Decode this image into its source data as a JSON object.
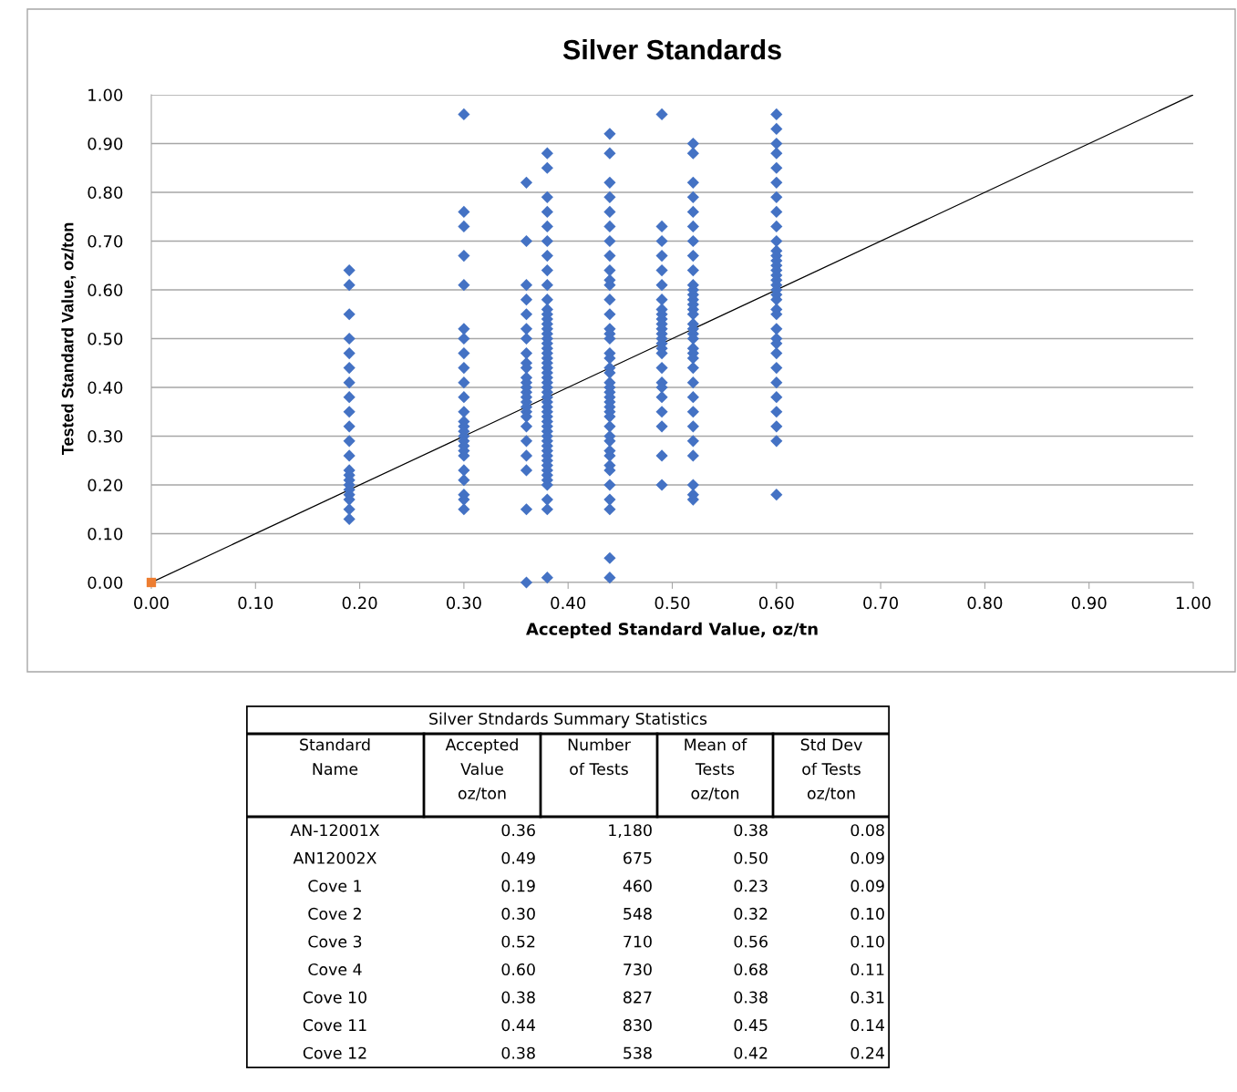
{
  "chart_data": [
    {
      "type": "scatter",
      "title": "Silver Standards",
      "xlabel": "Accepted Standard Value, oz/tn",
      "ylabel": "Tested Standard Value, oz/ton",
      "xlim": [
        0,
        1
      ],
      "ylim": [
        0,
        1
      ],
      "xticks": [
        {
          "value": 0,
          "label": "0.00"
        },
        {
          "value": 0.1,
          "label": "0.10"
        },
        {
          "value": 0.2,
          "label": "0.20"
        },
        {
          "value": 0.3,
          "label": "0.30"
        },
        {
          "value": 0.4,
          "label": "0.40"
        },
        {
          "value": 0.5,
          "label": "0.50"
        },
        {
          "value": 0.6,
          "label": "0.60"
        },
        {
          "value": 0.7,
          "label": "0.70"
        },
        {
          "value": 0.8,
          "label": "0.80"
        },
        {
          "value": 0.9,
          "label": "0.90"
        },
        {
          "value": 1,
          "label": "1.00"
        }
      ],
      "yticks": [
        {
          "value": 0,
          "label": "0.00"
        },
        {
          "value": 0.1,
          "label": "0.10"
        },
        {
          "value": 0.2,
          "label": "0.20"
        },
        {
          "value": 0.3,
          "label": "0.30"
        },
        {
          "value": 0.4,
          "label": "0.40"
        },
        {
          "value": 0.5,
          "label": "0.50"
        },
        {
          "value": 0.6,
          "label": "0.60"
        },
        {
          "value": 0.7,
          "label": "0.70"
        },
        {
          "value": 0.8,
          "label": "0.80"
        },
        {
          "value": 0.9,
          "label": "0.90"
        },
        {
          "value": 1,
          "label": "1.00"
        }
      ],
      "grid": "y",
      "legend": false,
      "series": [
        {
          "type": "line",
          "color": "#000000",
          "marker": "none",
          "line_style": "solid",
          "x": [
            0,
            1
          ],
          "values": [
            0,
            1
          ]
        },
        {
          "type": "scatter",
          "color": "#4472c4",
          "marker": "diamond",
          "x": [
            0.19,
            0.19,
            0.19,
            0.19,
            0.19,
            0.19,
            0.19,
            0.19,
            0.19,
            0.19,
            0.19,
            0.19,
            0.19,
            0.19,
            0.19,
            0.19,
            0.19,
            0.19,
            0.19,
            0.19,
            0.19
          ],
          "values": [
            0.64,
            0.61,
            0.55,
            0.5,
            0.47,
            0.44,
            0.41,
            0.38,
            0.35,
            0.32,
            0.29,
            0.26,
            0.23,
            0.22,
            0.21,
            0.2,
            0.19,
            0.18,
            0.17,
            0.15,
            0.13
          ]
        },
        {
          "type": "scatter",
          "color": "#4472c4",
          "marker": "diamond",
          "x": [
            0.3,
            0.3,
            0.3,
            0.3,
            0.3,
            0.3,
            0.3,
            0.3,
            0.3,
            0.3,
            0.3,
            0.3,
            0.3,
            0.3,
            0.3,
            0.3,
            0.3,
            0.3,
            0.3,
            0.3,
            0.3,
            0.3,
            0.3,
            0.3,
            0.3
          ],
          "values": [
            0.96,
            0.76,
            0.73,
            0.67,
            0.61,
            0.52,
            0.5,
            0.47,
            0.44,
            0.41,
            0.38,
            0.35,
            0.33,
            0.32,
            0.31,
            0.3,
            0.29,
            0.28,
            0.27,
            0.26,
            0.23,
            0.21,
            0.18,
            0.17,
            0.15
          ]
        },
        {
          "type": "scatter",
          "color": "#4472c4",
          "marker": "diamond",
          "x": [
            0.36,
            0.36,
            0.36,
            0.36,
            0.36,
            0.36,
            0.36,
            0.36,
            0.36,
            0.36,
            0.36,
            0.36,
            0.36,
            0.36,
            0.36,
            0.36,
            0.36,
            0.36,
            0.36,
            0.36,
            0.36,
            0.36,
            0.36,
            0.36,
            0.36
          ],
          "values": [
            0.82,
            0.7,
            0.61,
            0.58,
            0.55,
            0.52,
            0.5,
            0.47,
            0.45,
            0.44,
            0.42,
            0.41,
            0.4,
            0.39,
            0.38,
            0.37,
            0.36,
            0.35,
            0.34,
            0.32,
            0.29,
            0.26,
            0.23,
            0.15,
            0.0
          ]
        },
        {
          "type": "scatter",
          "color": "#4472c4",
          "marker": "diamond",
          "x": [
            0.38,
            0.38,
            0.38,
            0.38,
            0.38,
            0.38,
            0.38,
            0.38,
            0.38,
            0.38,
            0.38,
            0.38,
            0.38,
            0.38,
            0.38,
            0.38,
            0.38,
            0.38,
            0.38,
            0.38,
            0.38,
            0.38,
            0.38,
            0.38,
            0.38,
            0.38,
            0.38,
            0.38,
            0.38,
            0.38,
            0.38,
            0.38,
            0.38,
            0.38,
            0.38,
            0.38,
            0.38,
            0.38,
            0.38,
            0.38,
            0.38,
            0.38,
            0.38,
            0.38,
            0.38,
            0.38,
            0.38,
            0.38,
            0.38,
            0.38
          ],
          "values": [
            0.88,
            0.85,
            0.79,
            0.76,
            0.73,
            0.7,
            0.67,
            0.64,
            0.61,
            0.58,
            0.56,
            0.55,
            0.54,
            0.53,
            0.52,
            0.51,
            0.5,
            0.49,
            0.48,
            0.47,
            0.46,
            0.45,
            0.44,
            0.43,
            0.42,
            0.41,
            0.4,
            0.39,
            0.38,
            0.37,
            0.36,
            0.35,
            0.34,
            0.33,
            0.32,
            0.31,
            0.3,
            0.29,
            0.28,
            0.27,
            0.26,
            0.25,
            0.24,
            0.23,
            0.22,
            0.21,
            0.2,
            0.17,
            0.15,
            0.01
          ]
        },
        {
          "type": "scatter",
          "color": "#4472c4",
          "marker": "diamond",
          "x": [
            0.44,
            0.44,
            0.44,
            0.44,
            0.44,
            0.44,
            0.44,
            0.44,
            0.44,
            0.44,
            0.44,
            0.44,
            0.44,
            0.44,
            0.44,
            0.44,
            0.44,
            0.44,
            0.44,
            0.44,
            0.44,
            0.44,
            0.44,
            0.44,
            0.44,
            0.44,
            0.44,
            0.44,
            0.44,
            0.44,
            0.44,
            0.44,
            0.44,
            0.44,
            0.44,
            0.44,
            0.44,
            0.44,
            0.44,
            0.44
          ],
          "values": [
            0.92,
            0.88,
            0.82,
            0.79,
            0.76,
            0.73,
            0.7,
            0.67,
            0.64,
            0.62,
            0.61,
            0.58,
            0.55,
            0.52,
            0.51,
            0.5,
            0.47,
            0.46,
            0.44,
            0.43,
            0.41,
            0.4,
            0.39,
            0.38,
            0.37,
            0.36,
            0.35,
            0.34,
            0.32,
            0.3,
            0.29,
            0.27,
            0.26,
            0.24,
            0.23,
            0.2,
            0.17,
            0.15,
            0.05,
            0.01
          ]
        },
        {
          "type": "scatter",
          "color": "#4472c4",
          "marker": "diamond",
          "x": [
            0.49,
            0.49,
            0.49,
            0.49,
            0.49,
            0.49,
            0.49,
            0.49,
            0.49,
            0.49,
            0.49,
            0.49,
            0.49,
            0.49,
            0.49,
            0.49,
            0.49,
            0.49,
            0.49,
            0.49,
            0.49,
            0.49,
            0.49,
            0.49,
            0.49
          ],
          "values": [
            0.96,
            0.73,
            0.7,
            0.67,
            0.64,
            0.61,
            0.58,
            0.56,
            0.55,
            0.54,
            0.53,
            0.52,
            0.51,
            0.5,
            0.49,
            0.48,
            0.47,
            0.44,
            0.41,
            0.4,
            0.38,
            0.35,
            0.32,
            0.26,
            0.2
          ]
        },
        {
          "type": "scatter",
          "color": "#4472c4",
          "marker": "diamond",
          "x": [
            0.52,
            0.52,
            0.52,
            0.52,
            0.52,
            0.52,
            0.52,
            0.52,
            0.52,
            0.52,
            0.52,
            0.52,
            0.52,
            0.52,
            0.52,
            0.52,
            0.52,
            0.52,
            0.52,
            0.52,
            0.52,
            0.52,
            0.52,
            0.52,
            0.52,
            0.52,
            0.52,
            0.52,
            0.52,
            0.52,
            0.52,
            0.52,
            0.52
          ],
          "values": [
            0.9,
            0.88,
            0.82,
            0.79,
            0.76,
            0.73,
            0.7,
            0.67,
            0.64,
            0.61,
            0.6,
            0.59,
            0.58,
            0.57,
            0.56,
            0.55,
            0.53,
            0.52,
            0.51,
            0.5,
            0.48,
            0.47,
            0.46,
            0.44,
            0.41,
            0.38,
            0.35,
            0.32,
            0.29,
            0.26,
            0.2,
            0.18,
            0.17
          ]
        },
        {
          "type": "scatter",
          "color": "#4472c4",
          "marker": "diamond",
          "x": [
            0.6,
            0.6,
            0.6,
            0.6,
            0.6,
            0.6,
            0.6,
            0.6,
            0.6,
            0.6,
            0.6,
            0.6,
            0.6,
            0.6,
            0.6,
            0.6,
            0.6,
            0.6,
            0.6,
            0.6,
            0.6,
            0.6,
            0.6,
            0.6,
            0.6,
            0.6,
            0.6,
            0.6,
            0.6,
            0.6,
            0.6,
            0.6,
            0.6,
            0.6
          ],
          "values": [
            0.96,
            0.93,
            0.9,
            0.88,
            0.85,
            0.82,
            0.79,
            0.76,
            0.73,
            0.7,
            0.68,
            0.67,
            0.66,
            0.65,
            0.64,
            0.63,
            0.62,
            0.61,
            0.6,
            0.59,
            0.58,
            0.56,
            0.55,
            0.52,
            0.5,
            0.49,
            0.47,
            0.44,
            0.41,
            0.38,
            0.35,
            0.32,
            0.29,
            0.18
          ]
        },
        {
          "type": "scatter",
          "color": "#ed7d31",
          "marker": "square",
          "x": [
            0
          ],
          "values": [
            0
          ]
        }
      ]
    },
    {
      "type": "other",
      "title": "Silver Stndards Summary Statistics",
      "ylabel": "Standard\nName",
      "categories": [
        "Accepted\nValue\noz/ton",
        "Number\nof Tests",
        "Mean of\nTests\noz/ton",
        "Std Dev\nof Tests\noz/ton"
      ],
      "y_categories": [
        "AN-12001X",
        "AN12002X",
        "Cove 1",
        "Cove 2",
        "Cove 3",
        "Cove 4",
        "Cove 10",
        "Cove 11",
        "Cove 12"
      ],
      "cell_labels": [
        [
          "0.36",
          "1,180",
          "0.38",
          "0.08"
        ],
        [
          "0.49",
          "675",
          "0.50",
          "0.09"
        ],
        [
          "0.19",
          "460",
          "0.23",
          "0.09"
        ],
        [
          "0.30",
          "548",
          "0.32",
          "0.10"
        ],
        [
          "0.52",
          "710",
          "0.56",
          "0.10"
        ],
        [
          "0.60",
          "730",
          "0.68",
          "0.11"
        ],
        [
          "0.38",
          "827",
          "0.38",
          "0.31"
        ],
        [
          "0.44",
          "830",
          "0.45",
          "0.14"
        ],
        [
          "0.38",
          "538",
          "0.42",
          "0.24"
        ]
      ]
    }
  ]
}
